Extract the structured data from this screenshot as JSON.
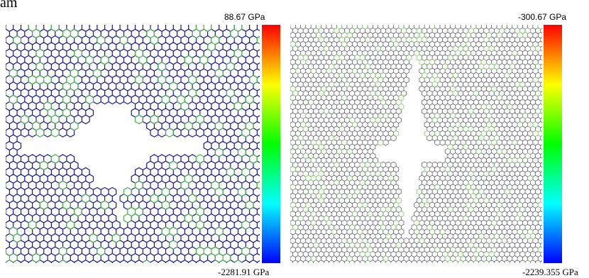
{
  "corner_text": "am",
  "panels": [
    {
      "name": "left",
      "colorbar_max_label": "88.67 GPa",
      "colorbar_min_label": "-2281.91 GPa",
      "lattice_color": "#1a1a8c",
      "accent_color": "#4caf50"
    },
    {
      "name": "right",
      "colorbar_max_label": "-300.67 GPa",
      "colorbar_min_label": "-2239.355 GPa",
      "lattice_color": "#333344",
      "accent_color": "#66bb44"
    }
  ],
  "colorbar_colors": [
    "#ff0000",
    "#ffff00",
    "#00ff00",
    "#00ffff",
    "#0000ff"
  ]
}
